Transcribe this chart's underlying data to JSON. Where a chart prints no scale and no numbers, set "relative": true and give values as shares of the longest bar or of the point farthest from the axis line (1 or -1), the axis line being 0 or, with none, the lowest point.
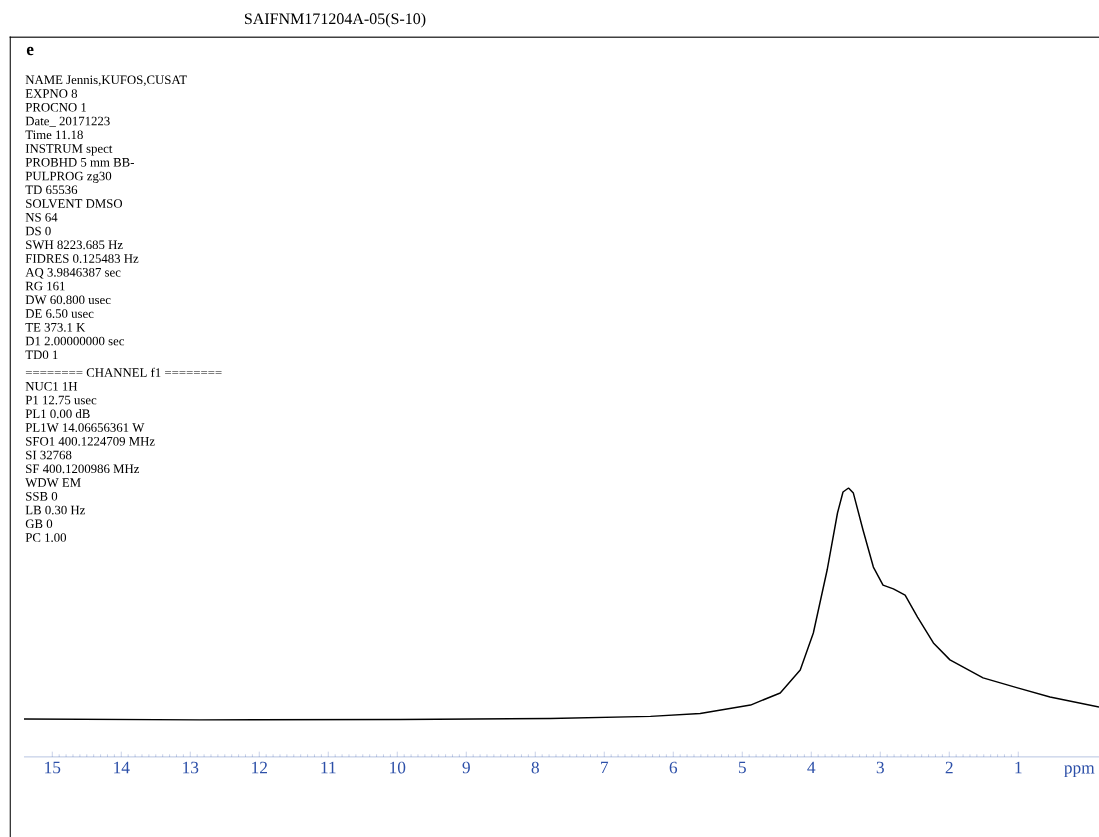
{
  "chart_data": {
    "type": "line",
    "relative": true,
    "title": "SAIFNM171204A-05(S-10)",
    "subtitle": "e",
    "xlabel": "ppm",
    "xlim": [
      15.41,
      -0.17
    ],
    "xticks": [
      1,
      2,
      3,
      4,
      5,
      6,
      7,
      8,
      9,
      10,
      11,
      12,
      13,
      14,
      15
    ],
    "x": [
      15.41,
      12.86,
      9.96,
      7.78,
      6.33,
      5.61,
      4.88,
      4.45,
      4.16,
      3.97,
      3.77,
      3.62,
      3.54,
      3.46,
      3.39,
      3.25,
      3.1,
      2.96,
      2.81,
      2.64,
      2.46,
      2.23,
      1.99,
      1.51,
      1.01,
      0.54,
      -0.17
    ],
    "values": [
      0.141,
      0.138,
      0.139,
      0.143,
      0.151,
      0.162,
      0.193,
      0.238,
      0.323,
      0.461,
      0.695,
      0.907,
      0.985,
      1.0,
      0.981,
      0.844,
      0.706,
      0.639,
      0.625,
      0.602,
      0.52,
      0.424,
      0.361,
      0.294,
      0.257,
      0.223,
      0.186
    ],
    "color": "#000000",
    "grid": false,
    "marker": "none",
    "line_style": "solid",
    "annotations": [
      "NAME Jennis,KUFOS,CUSAT",
      "EXPNO 8",
      "PROCNO 1",
      "Date_ 20171223",
      "Time 11.18",
      "INSTRUM spect",
      "PROBHD 5 mm BB-",
      "PULPROG zg30",
      "TD 65536",
      "SOLVENT DMSO",
      "NS 64",
      "DS 0",
      "SWH 8223.685 Hz",
      "FIDRES 0.125483 Hz",
      "AQ 3.9846387 sec",
      "RG 161",
      "DW 60.800 usec",
      "DE 6.50 usec",
      "TE 373.1 K",
      "D1 2.00000000 sec",
      "TD0 1",
      "======== CHANNEL f1 ========",
      "NUC1 1H",
      "P1 12.75 usec",
      "PL1 0.00 dB",
      "PL1W 14.06656361 W",
      "SFO1 400.1224709 MHz",
      "SI 32768",
      "SF 400.1200986 MHz",
      "WDW EM",
      "SSB 0",
      "LB 0.30 Hz",
      "GB 0",
      "PC 1.00"
    ]
  }
}
